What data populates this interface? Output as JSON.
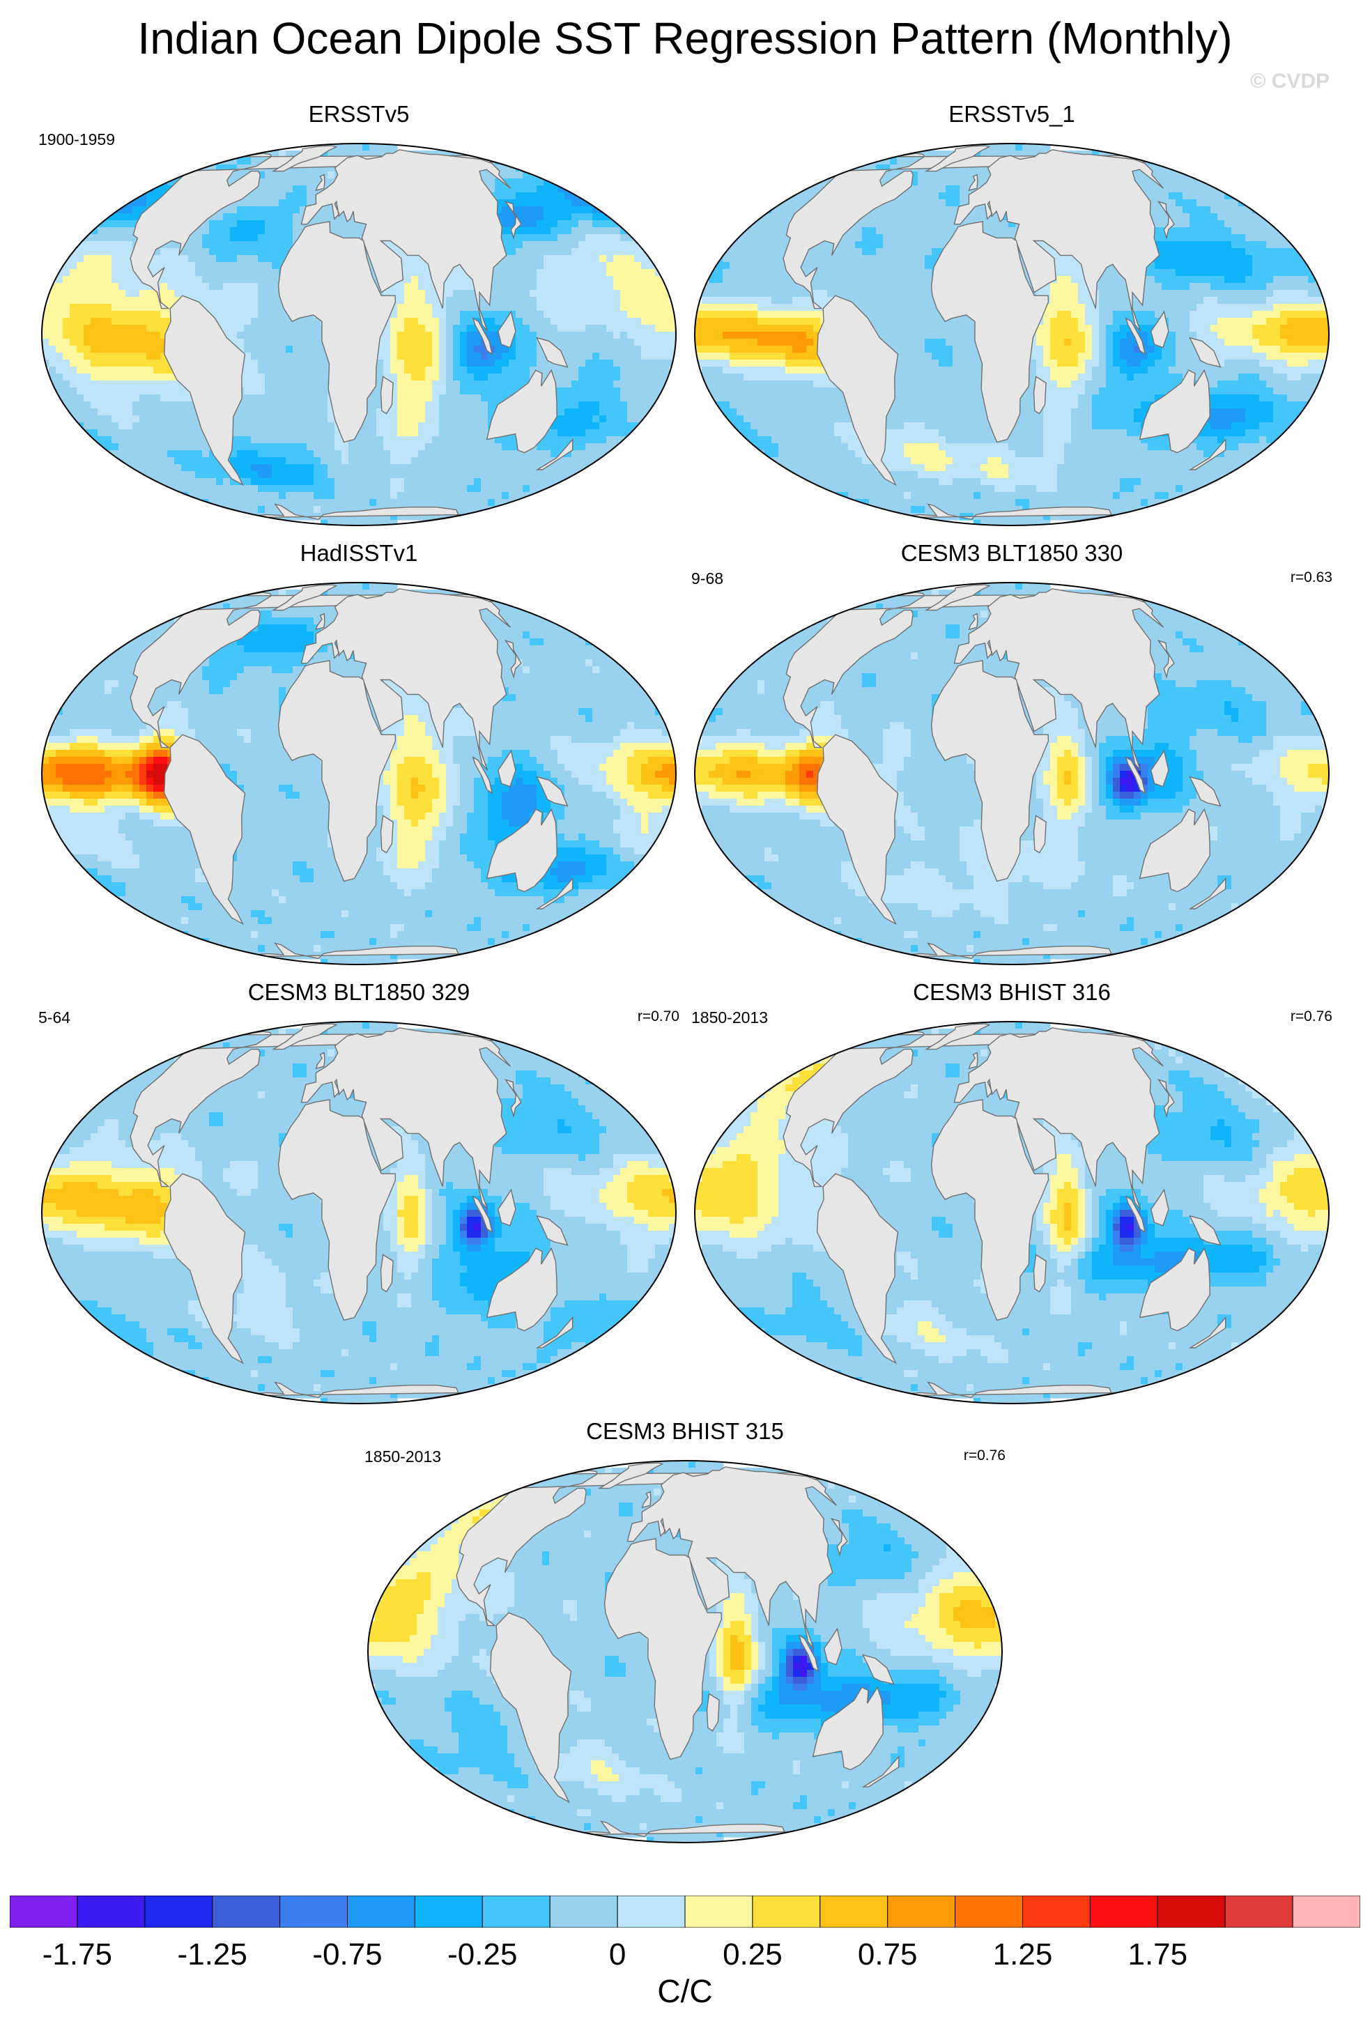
{
  "figure": {
    "title": "Indian Ocean Dipole SST Regression Pattern (Monthly)",
    "credit": "© CVDP"
  },
  "panels": [
    {
      "title": "ERSSTv5",
      "left_label": "1900-1959",
      "right_label": "",
      "pattern": "obs1"
    },
    {
      "title": "ERSSTv5_1",
      "left_label": "",
      "right_label": "",
      "pattern": "obs2"
    },
    {
      "title": "HadISSTv1",
      "left_label": "",
      "right_label": "",
      "pattern": "had"
    },
    {
      "title": "CESM3 BLT1850 330",
      "left_label": "9-68",
      "right_label": "r=0.63",
      "pattern": "blt330"
    },
    {
      "title": "CESM3 BLT1850 329",
      "left_label": "5-64",
      "right_label": "r=0.70",
      "pattern": "blt329"
    },
    {
      "title": "CESM3 BHIST 316",
      "left_label": "1850-2013",
      "right_label": "r=0.76",
      "pattern": "bh316"
    },
    {
      "title": "CESM3 BHIST 315",
      "left_label": "1850-2013",
      "right_label": "r=0.76",
      "pattern": "bh315"
    }
  ],
  "legend": {
    "unit": "C/C",
    "tick_labels": [
      "-1.75",
      "-1.25",
      "-0.75",
      "-0.25",
      "0",
      "0.25",
      "0.75",
      "1.25",
      "1.75"
    ],
    "colors": [
      "#7f1ff2",
      "#3b19f2",
      "#1c2af2",
      "#3a5fd8",
      "#3a7ff0",
      "#1e9bf7",
      "#10b4fb",
      "#44c6fb",
      "#98d2ee",
      "#bde4f8",
      "#fdf8a0",
      "#fde13a",
      "#fdc215",
      "#fd9b07",
      "#fd7306",
      "#fd3a10",
      "#fb0f0f",
      "#d80b0b",
      "#e03c3c",
      "#ffb5b5"
    ],
    "colors_semantic": {
      "land": "#e6e6e6",
      "coast": "#707070"
    }
  }
}
